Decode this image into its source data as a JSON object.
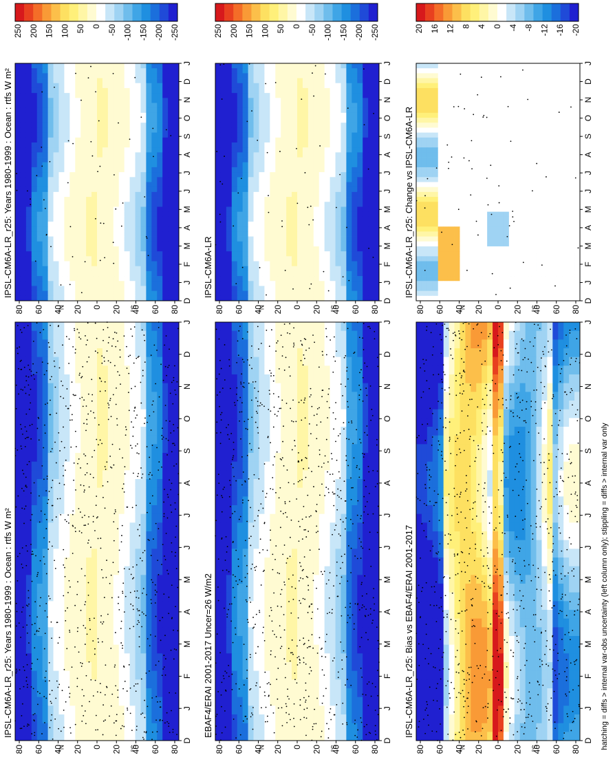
{
  "figure": {
    "footnote": "hatching = diffs > internal var-obs uncertainty (left column only); stippling = diffs > internal var only"
  },
  "colors": {
    "warm": [
      "#d7191c",
      "#e8401f",
      "#f46d28",
      "#f99a36",
      "#fcbf4a",
      "#fde061",
      "#fff07a",
      "#fff6a6",
      "#fffbd2"
    ],
    "neutral": "#ffffff",
    "cool": [
      "#c8e6f8",
      "#9fd3f3",
      "#6fbdec",
      "#3fa5e6",
      "#1f8fe0",
      "#1b6fdc",
      "#1f4ad8",
      "#2020d0"
    ]
  },
  "chart_data": [
    {
      "id": "panel-left-top",
      "type": "heatmap",
      "title": "IPSL-CM6A-LR_r25: Years 1980-1999 : Ocean : rtfs W m²",
      "x_ticks": [
        "D",
        "J",
        "F",
        "M",
        "A",
        "M",
        "J",
        "J",
        "A",
        "S",
        "O",
        "N",
        "D",
        "J"
      ],
      "lat_ticks": [
        "80",
        "60",
        "40",
        "20",
        "0",
        "20",
        "40",
        "60",
        "80"
      ],
      "hemisphere_labels": [
        "N",
        "S"
      ],
      "colorbar_labels": [
        "250",
        "200",
        "150",
        "100",
        "50",
        "0",
        "-50",
        "-100",
        "-150",
        "-200",
        "-250"
      ],
      "value_range": [
        -275,
        275
      ],
      "profile": "mean",
      "stipple": "dense"
    },
    {
      "id": "panel-right-top",
      "type": "heatmap",
      "title": "IPSL-CM6A-LR_r25: Years 1980-1999 : Ocean : rtfs W m²",
      "x_ticks": [
        "D",
        "J",
        "F",
        "M",
        "A",
        "M",
        "J",
        "J",
        "A",
        "S",
        "O",
        "N",
        "D",
        "J"
      ],
      "lat_ticks": [
        "80",
        "60",
        "40",
        "20",
        "0",
        "20",
        "40",
        "60",
        "80"
      ],
      "hemisphere_labels": [
        "N",
        "S"
      ],
      "colorbar_labels": [
        "250",
        "200",
        "150",
        "100",
        "50",
        "0",
        "-50",
        "-100",
        "-150",
        "-200",
        "-250"
      ],
      "value_range": [
        -275,
        275
      ],
      "profile": "mean",
      "stipple": "sparse"
    },
    {
      "id": "panel-left-mid",
      "type": "heatmap",
      "title": "EBAF4/ERAI 2001-2017 Uncer=26 W/m2",
      "x_ticks": [
        "D",
        "J",
        "F",
        "M",
        "A",
        "M",
        "J",
        "J",
        "A",
        "S",
        "O",
        "N",
        "D",
        "J"
      ],
      "lat_ticks": [
        "80",
        "60",
        "40",
        "20",
        "0",
        "20",
        "40",
        "60",
        "80"
      ],
      "hemisphere_labels": [
        "N",
        "S"
      ],
      "colorbar_labels": [
        "250",
        "200",
        "150",
        "100",
        "50",
        "0",
        "-50",
        "-100",
        "-150",
        "-200",
        "-250"
      ],
      "value_range": [
        -275,
        275
      ],
      "profile": "mean",
      "stipple": "dense"
    },
    {
      "id": "panel-right-mid",
      "type": "heatmap",
      "title": "IPSL-CM6A-LR",
      "x_ticks": [
        "D",
        "J",
        "F",
        "M",
        "A",
        "M",
        "J",
        "J",
        "A",
        "S",
        "O",
        "N",
        "D",
        "J"
      ],
      "lat_ticks": [
        "80",
        "60",
        "40",
        "20",
        "0",
        "20",
        "40",
        "60",
        "80"
      ],
      "hemisphere_labels": [
        "N",
        "S"
      ],
      "colorbar_labels": [
        "250",
        "200",
        "150",
        "100",
        "50",
        "0",
        "-50",
        "-100",
        "-150",
        "-200",
        "-250"
      ],
      "value_range": [
        -275,
        275
      ],
      "profile": "mean",
      "stipple": "sparse"
    },
    {
      "id": "panel-left-bottom",
      "type": "heatmap",
      "title": "IPSL-CM6A-LR_r25: Bias vs EBAF4/ERAI 2001-2017",
      "x_ticks": [
        "D",
        "J",
        "F",
        "M",
        "A",
        "M",
        "J",
        "J",
        "A",
        "S",
        "O",
        "N",
        "D",
        "J"
      ],
      "lat_ticks": [
        "80",
        "60",
        "40",
        "20",
        "0",
        "20",
        "40",
        "60",
        "80"
      ],
      "hemisphere_labels": [
        "N",
        "S"
      ],
      "colorbar_labels": [
        "20",
        "16",
        "12",
        "8",
        "4",
        "0",
        "-4",
        "-8",
        "-12",
        "-16",
        "-20"
      ],
      "value_range": [
        -22,
        22
      ],
      "profile": "bias",
      "stipple": "dense"
    },
    {
      "id": "panel-right-bottom",
      "type": "heatmap",
      "title": "IPSL-CM6A-LR_r25: Change vs IPSL-CM6A-LR",
      "x_ticks": [
        "D",
        "J",
        "F",
        "M",
        "A",
        "M",
        "J",
        "J",
        "A",
        "S",
        "O",
        "N",
        "D",
        "J"
      ],
      "lat_ticks": [
        "80",
        "60",
        "40",
        "20",
        "0",
        "20",
        "40",
        "60",
        "80"
      ],
      "hemisphere_labels": [
        "N",
        "S"
      ],
      "colorbar_labels": [
        "20",
        "16",
        "12",
        "8",
        "4",
        "0",
        "-4",
        "-8",
        "-12",
        "-16",
        "-20"
      ],
      "value_range": [
        -22,
        22
      ],
      "profile": "change",
      "stipple": "sparse"
    }
  ]
}
